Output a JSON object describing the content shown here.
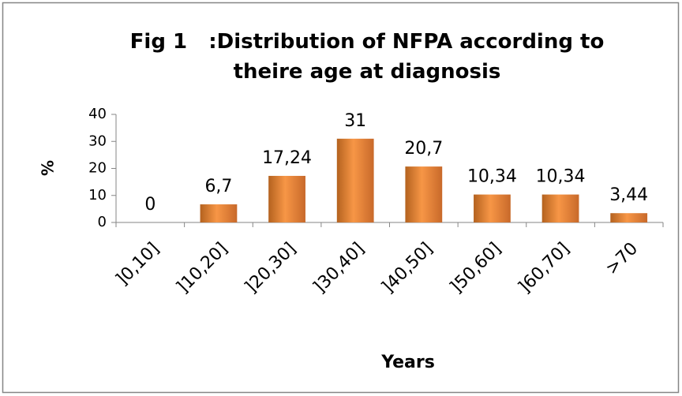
{
  "chart_data": {
    "type": "bar",
    "title": "Fig 1   :Distribution of NFPA according to theire age at diagnosis",
    "x_label": "Years",
    "y_label": "%",
    "categories": [
      "]0,10]",
      "]10,20]",
      "]20,30]",
      "]30,40]",
      "]40,50]",
      "]50,60]",
      "]60,70]",
      ">70"
    ],
    "values": [
      0,
      6.7,
      17.24,
      31,
      20.7,
      10.34,
      10.34,
      3.44
    ],
    "value_labels": [
      "0",
      "6,7",
      "17,24",
      "31",
      "20,7",
      "10,34",
      "10,34",
      "3,44"
    ],
    "color": "#f79646",
    "ylim": [
      0,
      40
    ],
    "yticks": [
      0,
      10,
      20,
      30,
      40
    ],
    "grid": false
  }
}
